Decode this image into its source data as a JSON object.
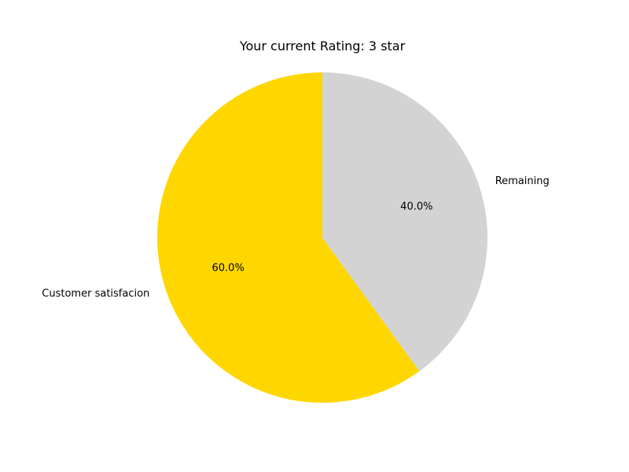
{
  "chart_data": {
    "type": "pie",
    "title": "Your current Rating: 3 star",
    "slices": [
      {
        "label": "Customer satisfacion",
        "value": 60.0,
        "percent_label": "60.0%",
        "color": "#FFD700"
      },
      {
        "label": "Remaining",
        "value": 40.0,
        "percent_label": "40.0%",
        "color": "#D3D3D3"
      }
    ],
    "start_angle_deg": 90,
    "direction": "counterclockwise"
  }
}
